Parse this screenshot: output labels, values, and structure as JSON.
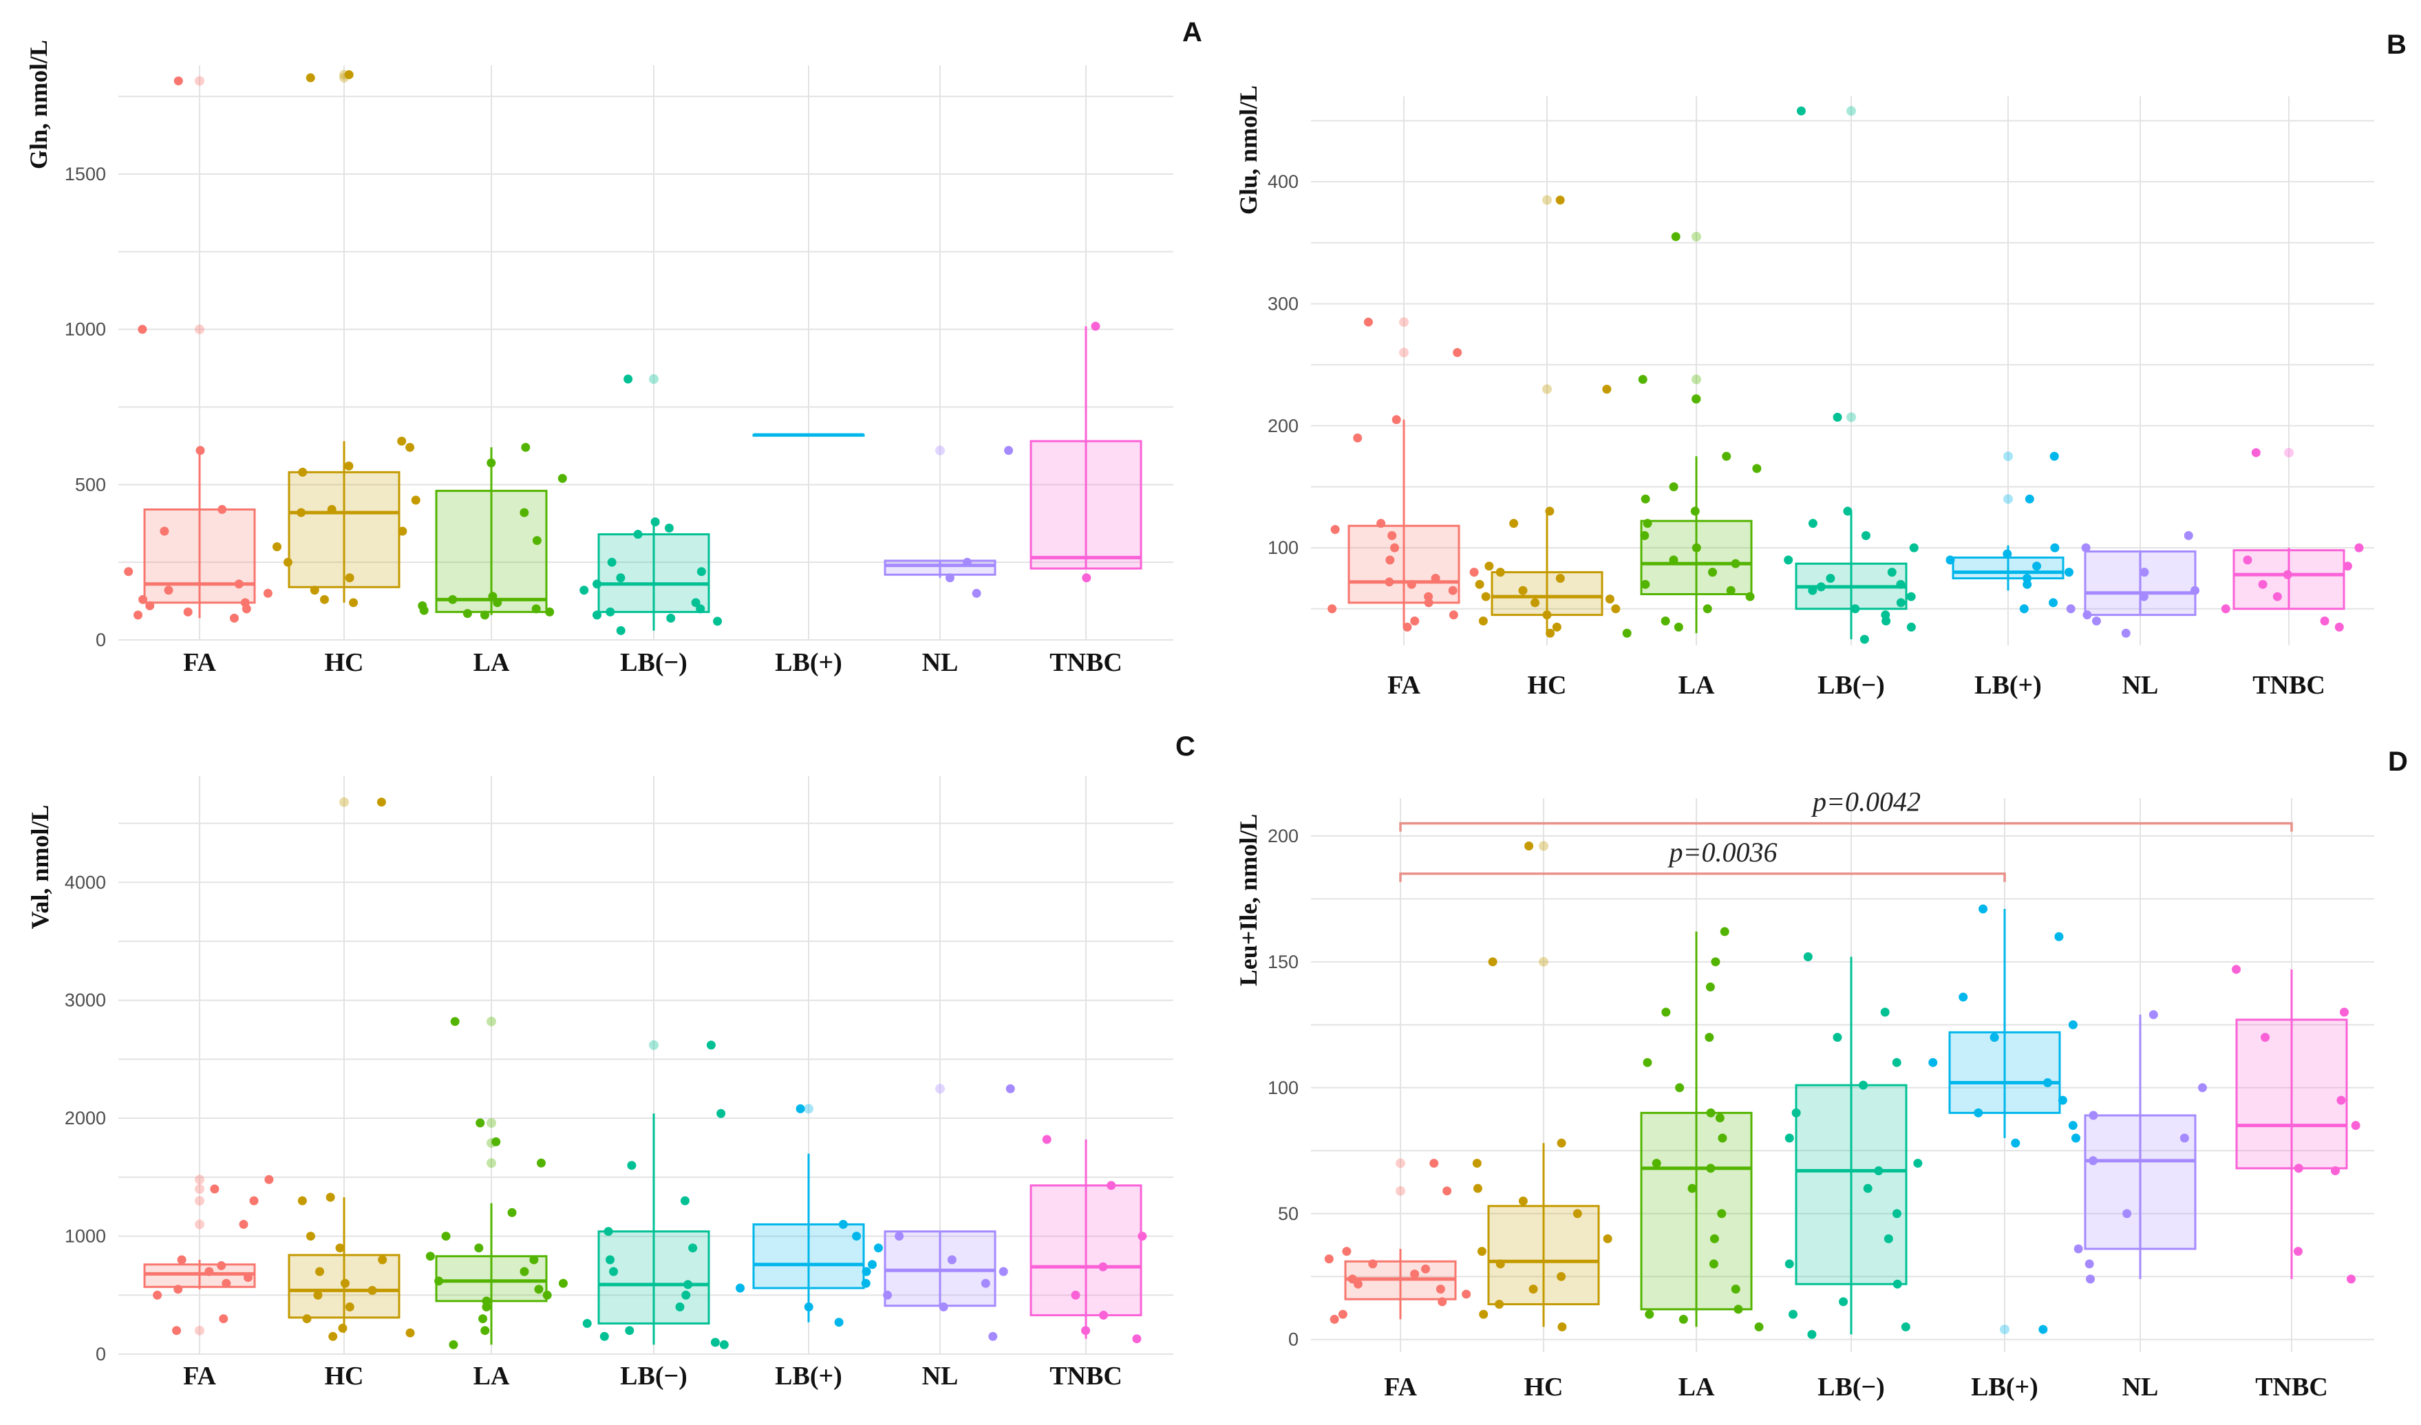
{
  "chart_data": [
    {
      "panel": "A",
      "type": "box",
      "ylabel": "Gln, nmol/L",
      "categories": [
        "FA",
        "HC",
        "LA",
        "LB(−)",
        "LB(+)",
        "NL",
        "TNBC"
      ],
      "ylim": [
        0,
        1850
      ],
      "yticks": [
        0,
        500,
        1000,
        1500
      ],
      "boxes": [
        {
          "min": 70,
          "q1": 120,
          "median": 180,
          "q3": 420,
          "max": 610,
          "outliers": [
            1000,
            1800
          ],
          "points": [
            70,
            80,
            90,
            100,
            110,
            120,
            130,
            150,
            160,
            180,
            220,
            350,
            420,
            610,
            1000,
            1800
          ]
        },
        {
          "min": 120,
          "q1": 170,
          "median": 410,
          "q3": 540,
          "max": 640,
          "outliers": [
            1820,
            1810
          ],
          "points": [
            120,
            130,
            160,
            200,
            250,
            300,
            350,
            410,
            420,
            450,
            540,
            560,
            620,
            640,
            1810,
            1820
          ]
        },
        {
          "min": 80,
          "q1": 90,
          "median": 130,
          "q3": 480,
          "max": 620,
          "outliers": [],
          "points": [
            80,
            85,
            90,
            95,
            100,
            110,
            120,
            130,
            140,
            320,
            410,
            520,
            570,
            620
          ]
        },
        {
          "min": 30,
          "q1": 90,
          "median": 180,
          "q3": 340,
          "max": 380,
          "outliers": [
            840
          ],
          "points": [
            30,
            60,
            70,
            80,
            90,
            100,
            120,
            160,
            180,
            200,
            220,
            250,
            340,
            360,
            380,
            840
          ]
        },
        {
          "min": 660,
          "q1": 660,
          "median": 660,
          "q3": 660,
          "max": 660,
          "outliers": [],
          "points": []
        },
        {
          "min": 200,
          "q1": 210,
          "median": 240,
          "q3": 255,
          "max": 255,
          "outliers": [
            610
          ],
          "points": [
            150,
            200,
            250,
            610
          ]
        },
        {
          "min": 230,
          "q1": 230,
          "median": 265,
          "q3": 640,
          "max": 1010,
          "outliers": [],
          "points": [
            200,
            1010
          ]
        }
      ]
    },
    {
      "panel": "B",
      "type": "box",
      "ylabel": "Glu, nmol/L",
      "categories": [
        "FA",
        "HC",
        "LA",
        "LB(−)",
        "LB(+)",
        "NL",
        "TNBC"
      ],
      "ylim": [
        20,
        470
      ],
      "yticks": [
        100,
        200,
        300,
        400
      ],
      "boxes": [
        {
          "min": 35,
          "q1": 55,
          "median": 72,
          "q3": 118,
          "max": 205,
          "outliers": [
            260,
            285
          ],
          "points": [
            35,
            40,
            45,
            50,
            55,
            60,
            65,
            70,
            72,
            75,
            80,
            90,
            100,
            110,
            115,
            120,
            190,
            205,
            260,
            285
          ]
        },
        {
          "min": 30,
          "q1": 45,
          "median": 60,
          "q3": 80,
          "max": 128,
          "outliers": [
            230,
            385
          ],
          "points": [
            30,
            35,
            40,
            45,
            50,
            55,
            58,
            60,
            65,
            70,
            75,
            80,
            85,
            120,
            130,
            230,
            385
          ]
        },
        {
          "min": 30,
          "q1": 62,
          "median": 87,
          "q3": 122,
          "max": 175,
          "outliers": [
            222,
            238,
            355
          ],
          "points": [
            30,
            35,
            40,
            50,
            60,
            65,
            70,
            80,
            87,
            90,
            100,
            110,
            120,
            130,
            140,
            150,
            165,
            175,
            222,
            238,
            355
          ]
        },
        {
          "min": 25,
          "q1": 50,
          "median": 68,
          "q3": 87,
          "max": 130,
          "outliers": [
            207,
            458
          ],
          "points": [
            25,
            35,
            40,
            45,
            50,
            55,
            60,
            65,
            68,
            70,
            75,
            80,
            90,
            100,
            110,
            120,
            130,
            207,
            458
          ]
        },
        {
          "min": 65,
          "q1": 75,
          "median": 80,
          "q3": 92,
          "max": 102,
          "outliers": [
            140,
            175
          ],
          "points": [
            50,
            55,
            70,
            75,
            80,
            85,
            90,
            95,
            100,
            140,
            175
          ]
        },
        {
          "min": 45,
          "q1": 45,
          "median": 63,
          "q3": 97,
          "max": 97,
          "outliers": [],
          "points": [
            30,
            40,
            45,
            50,
            60,
            65,
            80,
            100,
            110
          ]
        },
        {
          "min": 50,
          "q1": 50,
          "median": 78,
          "q3": 98,
          "max": 100,
          "outliers": [
            178
          ],
          "points": [
            35,
            40,
            50,
            60,
            70,
            78,
            85,
            90,
            100,
            178
          ]
        }
      ]
    },
    {
      "panel": "C",
      "type": "box",
      "ylabel": "Val, nmol/L",
      "categories": [
        "FA",
        "HC",
        "LA",
        "LB(−)",
        "LB(+)",
        "NL",
        "TNBC"
      ],
      "ylim": [
        0,
        4900
      ],
      "yticks": [
        0,
        1000,
        2000,
        3000,
        4000
      ],
      "boxes": [
        {
          "min": 550,
          "q1": 570,
          "median": 680,
          "q3": 760,
          "max": 800,
          "outliers": [
            200,
            1100,
            1300,
            1400,
            1480
          ],
          "points": [
            200,
            300,
            500,
            550,
            600,
            650,
            700,
            750,
            800,
            1100,
            1300,
            1400,
            1480
          ]
        },
        {
          "min": 180,
          "q1": 310,
          "median": 540,
          "q3": 840,
          "max": 1330,
          "outliers": [
            4680
          ],
          "points": [
            150,
            180,
            220,
            300,
            400,
            500,
            540,
            600,
            700,
            800,
            900,
            1000,
            1300,
            1330,
            4680
          ]
        },
        {
          "min": 80,
          "q1": 450,
          "median": 620,
          "q3": 830,
          "max": 1280,
          "outliers": [
            1620,
            1790,
            1960,
            2820
          ],
          "points": [
            80,
            200,
            300,
            400,
            450,
            500,
            550,
            600,
            620,
            700,
            800,
            830,
            900,
            1000,
            1200,
            1620,
            1800,
            1960,
            2820
          ]
        },
        {
          "min": 80,
          "q1": 260,
          "median": 590,
          "q3": 1040,
          "max": 2040,
          "outliers": [
            2620
          ],
          "points": [
            80,
            100,
            150,
            200,
            260,
            400,
            500,
            590,
            700,
            800,
            900,
            1040,
            1300,
            1600,
            2040,
            2620
          ]
        },
        {
          "min": 270,
          "q1": 560,
          "median": 760,
          "q3": 1100,
          "max": 1700,
          "outliers": [
            2080
          ],
          "points": [
            270,
            400,
            560,
            600,
            700,
            760,
            900,
            1000,
            1100,
            2080
          ]
        },
        {
          "min": 410,
          "q1": 410,
          "median": 710,
          "q3": 1040,
          "max": 1040,
          "outliers": [
            2250
          ],
          "points": [
            150,
            400,
            500,
            600,
            700,
            800,
            1000,
            2250
          ]
        },
        {
          "min": 130,
          "q1": 330,
          "median": 740,
          "q3": 1430,
          "max": 1820,
          "outliers": [],
          "points": [
            130,
            200,
            330,
            500,
            740,
            1000,
            1430,
            1820
          ]
        }
      ]
    },
    {
      "panel": "D",
      "type": "box",
      "ylabel": "Leu+Ile, nmol/L",
      "categories": [
        "FA",
        "HC",
        "LA",
        "LB(−)",
        "LB(+)",
        "NL",
        "TNBC"
      ],
      "ylim": [
        -5,
        215
      ],
      "yticks": [
        0,
        50,
        100,
        150,
        200
      ],
      "boxes": [
        {
          "min": 8,
          "q1": 16,
          "median": 24,
          "q3": 31,
          "max": 36,
          "outliers": [
            59,
            70
          ],
          "points": [
            8,
            10,
            15,
            18,
            20,
            22,
            24,
            26,
            28,
            30,
            32,
            35,
            59,
            70
          ]
        },
        {
          "min": 5,
          "q1": 14,
          "median": 31,
          "q3": 53,
          "max": 78,
          "outliers": [
            150,
            196
          ],
          "points": [
            5,
            10,
            14,
            20,
            25,
            30,
            35,
            40,
            50,
            55,
            60,
            70,
            78,
            150,
            196
          ]
        },
        {
          "min": 5,
          "q1": 12,
          "median": 68,
          "q3": 90,
          "max": 162,
          "outliers": [],
          "points": [
            5,
            8,
            10,
            12,
            20,
            30,
            40,
            50,
            60,
            68,
            70,
            80,
            88,
            90,
            100,
            110,
            120,
            130,
            140,
            150,
            162
          ]
        },
        {
          "min": 2,
          "q1": 22,
          "median": 67,
          "q3": 101,
          "max": 152,
          "outliers": [],
          "points": [
            2,
            5,
            10,
            15,
            22,
            30,
            40,
            50,
            60,
            67,
            70,
            80,
            90,
            101,
            110,
            120,
            130,
            152
          ]
        },
        {
          "min": 80,
          "q1": 90,
          "median": 102,
          "q3": 122,
          "max": 171,
          "outliers": [
            4
          ],
          "points": [
            4,
            78,
            80,
            85,
            90,
            95,
            102,
            110,
            120,
            125,
            136,
            160,
            171
          ]
        },
        {
          "min": 24,
          "q1": 36,
          "median": 71,
          "q3": 89,
          "max": 129,
          "outliers": [],
          "points": [
            24,
            30,
            36,
            50,
            71,
            80,
            89,
            100,
            129
          ]
        },
        {
          "min": 24,
          "q1": 68,
          "median": 85,
          "q3": 127,
          "max": 147,
          "outliers": [],
          "points": [
            24,
            35,
            67,
            68,
            85,
            95,
            120,
            130,
            147
          ]
        }
      ],
      "annotations": [
        {
          "label": "p=0.0042",
          "from": "FA",
          "to": "TNBC",
          "y": 205
        },
        {
          "label": "p=0.0036",
          "from": "FA",
          "to": "LB(+)",
          "y": 185
        }
      ]
    }
  ],
  "palette": [
    "#F8766D",
    "#C49A00",
    "#53B400",
    "#00C094",
    "#00B6EB",
    "#A58AFF",
    "#FB61D7"
  ]
}
